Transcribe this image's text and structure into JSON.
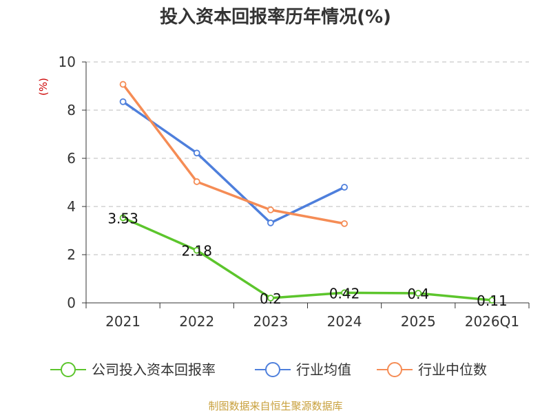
{
  "chart_data": {
    "type": "line",
    "title": "投入资本回报率历年情况(%)",
    "ylabel": "(%)",
    "xlabel": "",
    "categories": [
      "2021",
      "2022",
      "2023",
      "2024",
      "2025",
      "2026Q1"
    ],
    "ylim": [
      0,
      10
    ],
    "yticks": [
      0,
      2,
      4,
      6,
      8,
      10
    ],
    "grid": true,
    "legend_position": "bottom",
    "series": [
      {
        "name": "公司投入资本回报率",
        "color": "#5cc52c",
        "values": [
          3.53,
          2.18,
          0.2,
          0.42,
          0.4,
          0.11
        ],
        "labels": [
          "3.53",
          "2.18",
          "0.2",
          "0.42",
          "0.4",
          "0.11"
        ]
      },
      {
        "name": "行业均值",
        "color": "#4e7fdc",
        "values": [
          8.35,
          6.22,
          3.32,
          4.8,
          null,
          null
        ]
      },
      {
        "name": "行业中位数",
        "color": "#f58c55",
        "values": [
          9.07,
          5.03,
          3.86,
          3.29,
          null,
          null
        ]
      }
    ]
  },
  "source": "制图数据来自恒生聚源数据库",
  "colors": {
    "axis": "#333333",
    "grid": "#bbbbbb",
    "ylabel": "#cc0000",
    "source": "#c8a03c"
  }
}
